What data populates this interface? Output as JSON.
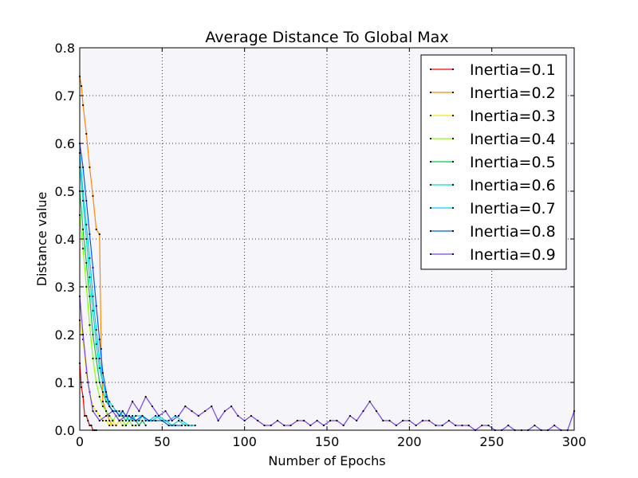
{
  "chart_data": {
    "type": "line",
    "title": "Average Distance To Global Max",
    "xlabel": "Number of Epochs",
    "ylabel": "Distance value",
    "xlim": [
      0,
      300
    ],
    "ylim": [
      0,
      0.8
    ],
    "xticks": [
      "0",
      "50",
      "100",
      "150",
      "200",
      "250",
      "300"
    ],
    "yticks": [
      "0.0",
      "0.1",
      "0.2",
      "0.3",
      "0.4",
      "0.5",
      "0.6",
      "0.7",
      "0.8"
    ],
    "grid": true,
    "legend_position": "top-right",
    "series": [
      {
        "name": "Inertia=0.1",
        "color": "#ff0000",
        "x": [
          0,
          1,
          2,
          3,
          4,
          5,
          6,
          7,
          8,
          9,
          10
        ],
        "y": [
          0.14,
          0.09,
          0.07,
          0.03,
          0.03,
          0.02,
          0.01,
          0.01,
          0,
          0,
          0
        ]
      },
      {
        "name": "Inertia=0.2",
        "color": "#ff8800",
        "x": [
          0,
          1,
          2,
          4,
          6,
          8,
          10,
          12,
          13,
          14,
          16,
          18,
          20
        ],
        "y": [
          0.74,
          0.72,
          0.68,
          0.62,
          0.55,
          0.49,
          0.42,
          0.41,
          0.17,
          0.06,
          0.04,
          0.02,
          0.01
        ]
      },
      {
        "name": "Inertia=0.3",
        "color": "#eeee00",
        "x": [
          0,
          2,
          4,
          6,
          8,
          10,
          12,
          14,
          16,
          18,
          20,
          22,
          24,
          26,
          28
        ],
        "y": [
          0.23,
          0.19,
          0.12,
          0.08,
          0.05,
          0.04,
          0.03,
          0.02,
          0.02,
          0.01,
          0.02,
          0.01,
          0.02,
          0.01,
          0.01
        ]
      },
      {
        "name": "Inertia=0.4",
        "color": "#88ff00",
        "x": [
          0,
          2,
          4,
          6,
          8,
          10,
          12,
          14,
          16,
          18,
          20,
          22,
          24,
          26,
          28,
          30,
          32,
          34
        ],
        "y": [
          0.45,
          0.38,
          0.3,
          0.22,
          0.15,
          0.1,
          0.07,
          0.05,
          0.04,
          0.03,
          0.02,
          0.03,
          0.02,
          0.02,
          0.01,
          0.02,
          0.01,
          0.01
        ]
      },
      {
        "name": "Inertia=0.5",
        "color": "#00cc44",
        "x": [
          0,
          2,
          4,
          6,
          8,
          10,
          12,
          14,
          16,
          18,
          20,
          22,
          24,
          26,
          28,
          30,
          32,
          34,
          36,
          38,
          40
        ],
        "y": [
          0.5,
          0.42,
          0.35,
          0.28,
          0.2,
          0.15,
          0.1,
          0.08,
          0.06,
          0.05,
          0.04,
          0.04,
          0.03,
          0.03,
          0.02,
          0.03,
          0.02,
          0.02,
          0.01,
          0.02,
          0.01
        ]
      },
      {
        "name": "Inertia=0.6",
        "color": "#00ddcc",
        "x": [
          0,
          2,
          4,
          6,
          8,
          10,
          12,
          14,
          16,
          18,
          20,
          22,
          24,
          26,
          28,
          30,
          32,
          34,
          36,
          38,
          40,
          44,
          48,
          52,
          56,
          60,
          64,
          68
        ],
        "y": [
          0.55,
          0.48,
          0.4,
          0.32,
          0.25,
          0.18,
          0.13,
          0.1,
          0.07,
          0.06,
          0.05,
          0.04,
          0.04,
          0.03,
          0.03,
          0.02,
          0.03,
          0.02,
          0.02,
          0.03,
          0.02,
          0.02,
          0.03,
          0.02,
          0.01,
          0.02,
          0.01,
          0.01
        ]
      },
      {
        "name": "Inertia=0.7",
        "color": "#00ccff",
        "x": [
          0,
          2,
          4,
          6,
          8,
          10,
          12,
          14,
          16,
          18,
          20,
          22,
          24,
          26,
          28,
          30,
          34,
          38,
          42,
          46,
          50,
          54,
          58,
          62,
          66,
          70
        ],
        "y": [
          0.58,
          0.5,
          0.43,
          0.36,
          0.28,
          0.21,
          0.15,
          0.1,
          0.07,
          0.05,
          0.04,
          0.04,
          0.03,
          0.04,
          0.03,
          0.02,
          0.03,
          0.03,
          0.02,
          0.03,
          0.02,
          0.02,
          0.03,
          0.02,
          0.01,
          0.01
        ]
      },
      {
        "name": "Inertia=0.8",
        "color": "#0055ff",
        "x": [
          0,
          2,
          4,
          6,
          8,
          10,
          12,
          14,
          16,
          18,
          20,
          22,
          24,
          26,
          28,
          30,
          34,
          38,
          42,
          46,
          50,
          54,
          58,
          62
        ],
        "y": [
          0.6,
          0.55,
          0.48,
          0.41,
          0.34,
          0.26,
          0.19,
          0.12,
          0.08,
          0.05,
          0.04,
          0.04,
          0.03,
          0.04,
          0.03,
          0.03,
          0.02,
          0.03,
          0.02,
          0.02,
          0.02,
          0.01,
          0.01,
          0.01
        ]
      },
      {
        "name": "Inertia=0.9",
        "color": "#7744ee",
        "x": [
          0,
          2,
          5,
          8,
          12,
          16,
          20,
          24,
          28,
          32,
          36,
          40,
          44,
          48,
          52,
          56,
          60,
          64,
          68,
          72,
          76,
          80,
          84,
          88,
          92,
          96,
          100,
          104,
          108,
          112,
          116,
          120,
          124,
          128,
          132,
          136,
          140,
          144,
          148,
          152,
          156,
          160,
          164,
          168,
          172,
          176,
          180,
          184,
          188,
          192,
          196,
          200,
          204,
          208,
          212,
          216,
          220,
          224,
          228,
          232,
          236,
          240,
          244,
          248,
          252,
          256,
          260,
          264,
          268,
          272,
          276,
          280,
          284,
          288,
          292,
          296,
          300
        ],
        "y": [
          0.28,
          0.2,
          0.1,
          0.04,
          0.02,
          0.03,
          0.04,
          0.02,
          0.03,
          0.06,
          0.04,
          0.07,
          0.05,
          0.03,
          0.04,
          0.02,
          0.03,
          0.05,
          0.04,
          0.03,
          0.04,
          0.05,
          0.02,
          0.04,
          0.05,
          0.03,
          0.02,
          0.03,
          0.02,
          0.01,
          0.01,
          0.02,
          0.01,
          0.01,
          0.02,
          0.02,
          0.01,
          0.02,
          0.01,
          0.02,
          0.02,
          0.01,
          0.03,
          0.02,
          0.04,
          0.06,
          0.04,
          0.02,
          0.02,
          0.01,
          0.02,
          0.02,
          0.01,
          0.02,
          0.02,
          0.01,
          0.01,
          0.02,
          0.01,
          0.01,
          0.01,
          0.0,
          0.01,
          0.01,
          0.0,
          0.0,
          0.01,
          0.0,
          0.0,
          0.0,
          0.01,
          0.0,
          0.0,
          0.01,
          0.0,
          0.0,
          0.04
        ]
      }
    ]
  }
}
